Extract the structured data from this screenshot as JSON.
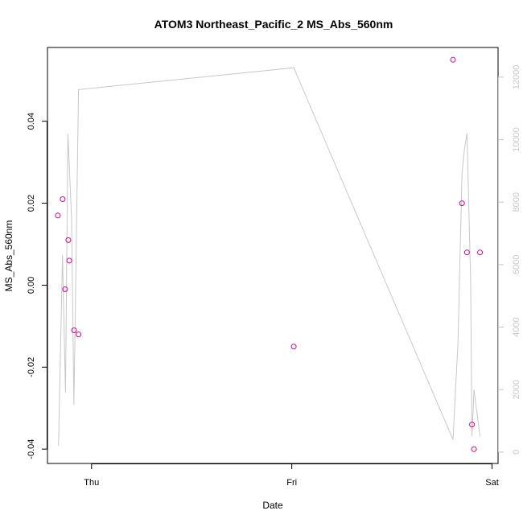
{
  "chart_data": {
    "type": "scatter",
    "title": "ATOM3 Northeast_Pacific_2 MS_Abs_560nm",
    "xlabel": "Date",
    "ylabel": "MS_Abs_560nm",
    "x_ticks": [
      "Thu",
      "Fri",
      "Sat"
    ],
    "x_tick_values": [
      0.0,
      1.0,
      2.0
    ],
    "xlim": [
      -0.22,
      2.03
    ],
    "ylim": [
      -0.0435,
      0.058
    ],
    "y_ticks": [
      -0.04,
      -0.02,
      0.0,
      0.02,
      0.04
    ],
    "y_tick_labels": [
      "-0.04",
      "-0.02",
      "0.00",
      "0.02",
      "0.04"
    ],
    "y2lim": [
      -365,
      12950
    ],
    "y2_ticks": [
      0,
      2000,
      4000,
      6000,
      8000,
      10000,
      12000
    ],
    "y2_tick_labels": [
      "0",
      "2000",
      "4000",
      "6000",
      "8000",
      "10000",
      "12000"
    ],
    "grid": false,
    "series": [
      {
        "kind": "points",
        "color": "#e6007e",
        "x": [
          -0.168,
          -0.144,
          -0.132,
          -0.116,
          -0.111,
          -0.087,
          -0.065,
          1.01,
          1.805,
          1.85,
          1.875,
          1.9,
          1.91,
          1.94
        ],
        "y": [
          0.017,
          0.021,
          -0.001,
          0.011,
          0.006,
          -0.011,
          -0.012,
          -0.015,
          0.055,
          0.02,
          0.008,
          -0.034,
          -0.04,
          0.008
        ]
      },
      {
        "kind": "line",
        "axis": "right",
        "color": "#c8c8c8",
        "x": [
          -0.165,
          -0.145,
          -0.13,
          -0.118,
          -0.1,
          -0.088,
          -0.065,
          1.01,
          1.805,
          1.83,
          1.85,
          1.86,
          1.875,
          1.893,
          1.9,
          1.91,
          1.94
        ],
        "y": [
          200,
          6300,
          1900,
          10200,
          7500,
          1500,
          11600,
          12300,
          400,
          3500,
          8900,
          9600,
          10200,
          5500,
          500,
          2000,
          500
        ]
      }
    ]
  }
}
